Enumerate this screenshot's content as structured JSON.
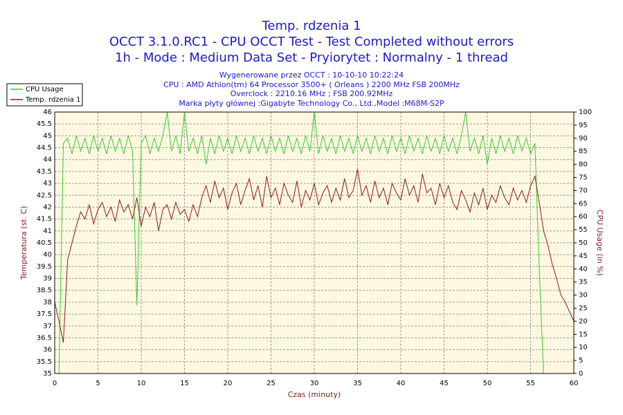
{
  "chart_data": {
    "type": "line",
    "title": "Temp. rdzenia 1",
    "subtitle": [
      "OCCT 3.1.0.RC1 - CPU OCCT Test - Test Completed without errors",
      "1h - Mode : Medium Data Set - Pryiorytet : Normalny - 1 thread"
    ],
    "info": [
      "Wygenerowane przez OCCT : 10-10-10 10:22:24",
      "CPU : AMD Athlon(tm) 64 Processor 3500+ ( Orleans ) 2200 MHz FSB 200MHz",
      "Overclock : 2210.16 MHz ; FSB 200.92MHz",
      "Marka płyty głównej :Gigabyte Technology Co., Ltd.,Model :M68M-S2P"
    ],
    "x_label": "Czas (minuty)",
    "y_label": "Temperatura (st. C)",
    "y2_label": "CPU Usage (in %)",
    "x": [
      0,
      0.5,
      1,
      1.5,
      2,
      2.5,
      3,
      3.5,
      4,
      4.5,
      5,
      5.5,
      6,
      6.5,
      7,
      7.5,
      8,
      8.5,
      9,
      9.5,
      10,
      10.5,
      11,
      11.5,
      12,
      12.5,
      13,
      13.5,
      14,
      14.5,
      15,
      15.5,
      16,
      16.5,
      17,
      17.5,
      18,
      18.5,
      19,
      19.5,
      20,
      20.5,
      21,
      21.5,
      22,
      22.5,
      23,
      23.5,
      24,
      24.5,
      25,
      25.5,
      26,
      26.5,
      27,
      27.5,
      28,
      28.5,
      29,
      29.5,
      30,
      30.5,
      31,
      31.5,
      32,
      32.5,
      33,
      33.5,
      34,
      34.5,
      35,
      35.5,
      36,
      36.5,
      37,
      37.5,
      38,
      38.5,
      39,
      39.5,
      40,
      40.5,
      41,
      41.5,
      42,
      42.5,
      43,
      43.5,
      44,
      44.5,
      45,
      45.5,
      46,
      46.5,
      47,
      47.5,
      48,
      48.5,
      49,
      49.5,
      50,
      50.5,
      51,
      51.5,
      52,
      52.5,
      53,
      53.5,
      54,
      54.5,
      55,
      55.5,
      56,
      56.5,
      57,
      57.5,
      58,
      58.5,
      59,
      59.5,
      60
    ],
    "series": [
      {
        "name": "CPU Usage",
        "color": "#33cc33",
        "axis": "y2",
        "values": [
          0,
          0,
          88,
          90,
          84,
          91,
          85,
          90,
          84,
          91,
          85,
          90,
          84,
          91,
          85,
          90,
          84,
          91,
          85,
          26,
          88,
          91,
          84,
          90,
          85,
          91,
          100,
          85,
          91,
          84,
          100,
          85,
          90,
          84,
          91,
          80,
          90,
          84,
          91,
          85,
          90,
          84,
          91,
          85,
          90,
          84,
          91,
          85,
          90,
          84,
          91,
          85,
          90,
          84,
          91,
          85,
          90,
          84,
          91,
          85,
          100,
          84,
          91,
          85,
          90,
          84,
          91,
          85,
          90,
          84,
          91,
          85,
          90,
          84,
          91,
          85,
          90,
          84,
          91,
          85,
          90,
          84,
          91,
          85,
          90,
          84,
          91,
          85,
          90,
          84,
          91,
          85,
          90,
          84,
          91,
          100,
          85,
          90,
          84,
          91,
          80,
          90,
          84,
          91,
          85,
          90,
          84,
          91,
          85,
          90,
          84,
          88,
          40,
          0,
          0,
          0,
          0,
          0,
          0,
          0,
          0
        ]
      },
      {
        "name": "Temp. rdzenia 1",
        "color": "#8b1a1a",
        "axis": "y",
        "values": [
          38,
          37.2,
          36.3,
          39.8,
          40.5,
          41.2,
          41.8,
          41.5,
          42.1,
          41.3,
          41.9,
          42.2,
          41.6,
          42.0,
          41.4,
          42.3,
          41.8,
          42.1,
          41.5,
          42.4,
          41.2,
          42.0,
          41.6,
          42.2,
          41.0,
          41.9,
          42.1,
          41.5,
          42.2,
          41.7,
          41.9,
          41.4,
          42.1,
          41.6,
          42.4,
          42.9,
          42.2,
          43.1,
          42.4,
          42.8,
          41.9,
          42.6,
          43.0,
          42.1,
          42.7,
          43.2,
          42.3,
          42.9,
          42.0,
          43.3,
          42.4,
          42.8,
          42.1,
          43.0,
          42.5,
          42.2,
          43.1,
          42.0,
          42.7,
          42.3,
          43.0,
          42.1,
          42.6,
          42.9,
          42.2,
          42.8,
          42.3,
          43.2,
          42.4,
          42.7,
          43.6,
          42.5,
          42.9,
          42.2,
          43.1,
          42.4,
          42.8,
          42.1,
          43.0,
          42.6,
          42.3,
          43.2,
          42.5,
          42.9,
          42.2,
          43.4,
          42.6,
          42.8,
          42.1,
          43.0,
          42.4,
          42.9,
          42.2,
          41.9,
          42.7,
          42.3,
          41.8,
          42.6,
          42.1,
          42.8,
          41.9,
          42.5,
          42.2,
          42.9,
          42.4,
          42.1,
          42.8,
          42.3,
          42.7,
          42.2,
          42.9,
          43.3,
          42.2,
          41.0,
          40.4,
          39.6,
          39.0,
          38.3,
          38.0,
          37.6,
          37.2
        ]
      }
    ],
    "xlim": [
      0,
      60
    ],
    "xticks": [
      0,
      5,
      10,
      15,
      20,
      25,
      30,
      35,
      40,
      45,
      50,
      55,
      60
    ],
    "ylim": [
      35,
      46
    ],
    "yticks": [
      35,
      35.5,
      36,
      36.5,
      37,
      37.5,
      38,
      38.5,
      39,
      39.5,
      40,
      40.5,
      41,
      41.5,
      42,
      42.5,
      43,
      43.5,
      44,
      44.5,
      45,
      45.5,
      46
    ],
    "y2lim": [
      0,
      100
    ],
    "y2ticks": [
      0,
      5,
      10,
      15,
      20,
      25,
      30,
      35,
      40,
      45,
      50,
      55,
      60,
      65,
      70,
      75,
      80,
      85,
      90,
      95,
      100
    ],
    "grid": true,
    "legend": "top-left"
  }
}
